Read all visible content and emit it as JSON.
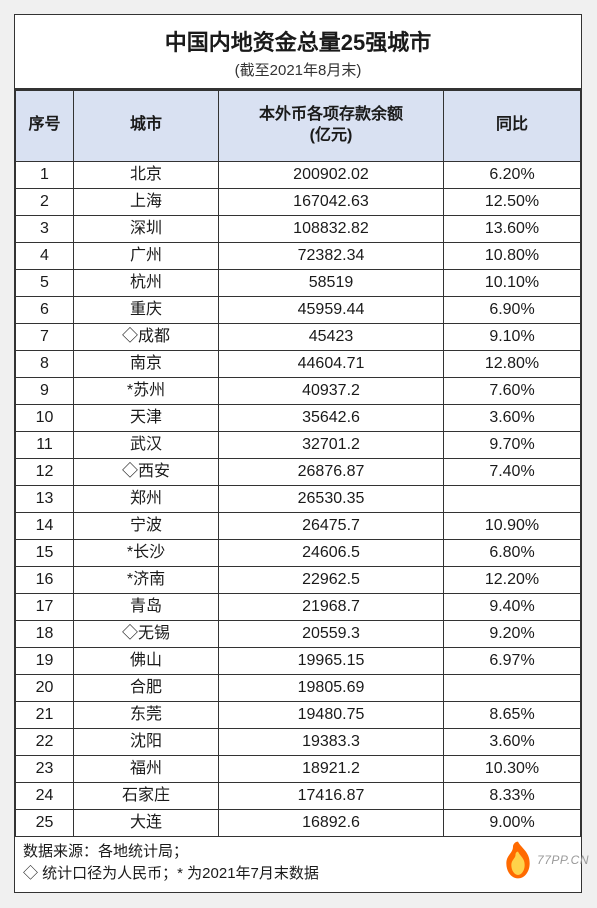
{
  "title": "中国内地资金总量25强城市",
  "subtitle": "(截至2021年8月末)",
  "columns": {
    "rank": "序号",
    "city": "城市",
    "deposit": "本外币各项存款余额\n(亿元)",
    "yoy": "同比"
  },
  "rows": [
    {
      "rank": "1",
      "city": "北京",
      "deposit": "200902.02",
      "yoy": "6.20%"
    },
    {
      "rank": "2",
      "city": "上海",
      "deposit": "167042.63",
      "yoy": "12.50%"
    },
    {
      "rank": "3",
      "city": "深圳",
      "deposit": "108832.82",
      "yoy": "13.60%"
    },
    {
      "rank": "4",
      "city": "广州",
      "deposit": "72382.34",
      "yoy": "10.80%"
    },
    {
      "rank": "5",
      "city": "杭州",
      "deposit": "58519",
      "yoy": "10.10%"
    },
    {
      "rank": "6",
      "city": "重庆",
      "deposit": "45959.44",
      "yoy": "6.90%"
    },
    {
      "rank": "7",
      "city": "◇成都",
      "deposit": "45423",
      "yoy": "9.10%"
    },
    {
      "rank": "8",
      "city": "南京",
      "deposit": "44604.71",
      "yoy": "12.80%"
    },
    {
      "rank": "9",
      "city": "*苏州",
      "deposit": "40937.2",
      "yoy": "7.60%"
    },
    {
      "rank": "10",
      "city": "天津",
      "deposit": "35642.6",
      "yoy": "3.60%"
    },
    {
      "rank": "11",
      "city": "武汉",
      "deposit": "32701.2",
      "yoy": "9.70%"
    },
    {
      "rank": "12",
      "city": "◇西安",
      "deposit": "26876.87",
      "yoy": "7.40%"
    },
    {
      "rank": "13",
      "city": "郑州",
      "deposit": "26530.35",
      "yoy": ""
    },
    {
      "rank": "14",
      "city": "宁波",
      "deposit": "26475.7",
      "yoy": "10.90%"
    },
    {
      "rank": "15",
      "city": "*长沙",
      "deposit": "24606.5",
      "yoy": "6.80%"
    },
    {
      "rank": "16",
      "city": "*济南",
      "deposit": "22962.5",
      "yoy": "12.20%"
    },
    {
      "rank": "17",
      "city": "青岛",
      "deposit": "21968.7",
      "yoy": "9.40%"
    },
    {
      "rank": "18",
      "city": "◇无锡",
      "deposit": "20559.3",
      "yoy": "9.20%"
    },
    {
      "rank": "19",
      "city": "佛山",
      "deposit": "19965.15",
      "yoy": "6.97%"
    },
    {
      "rank": "20",
      "city": "合肥",
      "deposit": "19805.69",
      "yoy": ""
    },
    {
      "rank": "21",
      "city": "东莞",
      "deposit": "19480.75",
      "yoy": "8.65%"
    },
    {
      "rank": "22",
      "city": "沈阳",
      "deposit": "19383.3",
      "yoy": "3.60%"
    },
    {
      "rank": "23",
      "city": "福州",
      "deposit": "18921.2",
      "yoy": "10.30%"
    },
    {
      "rank": "24",
      "city": "石家庄",
      "deposit": "17416.87",
      "yoy": "8.33%"
    },
    {
      "rank": "25",
      "city": "大连",
      "deposit": "16892.6",
      "yoy": "9.00%"
    }
  ],
  "footer": {
    "line1": "数据来源：各地统计局；",
    "line2": "◇ 统计口径为人民币；* 为2021年7月末数据"
  },
  "watermark_text": "77PP.CN",
  "colors": {
    "header_bg": "#d9e1f2",
    "border": "#333333",
    "flame_outer": "#ff6a00",
    "flame_inner": "#ffd24a"
  }
}
